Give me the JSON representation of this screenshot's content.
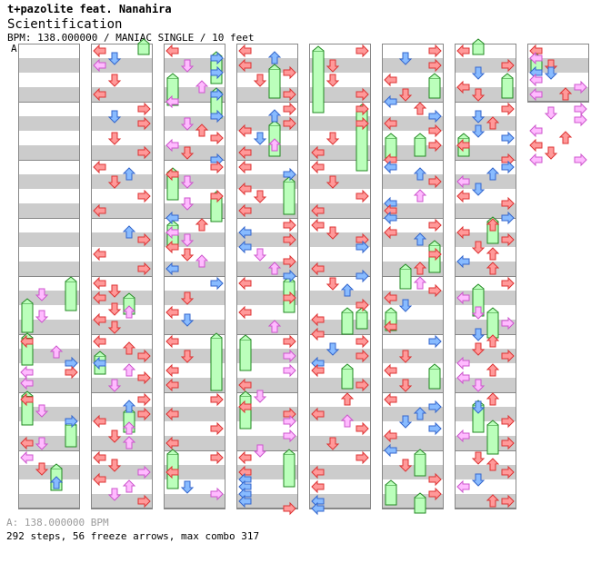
{
  "header": {
    "artist": "t+pazolite feat. Nanahira",
    "title": "Scientification",
    "meta": "BPM: 138.000000 / MANIAC SINGLE / 10 feet",
    "section_label": "A"
  },
  "footer": {
    "bpm_line": "A: 138.000000 BPM",
    "stats_line": "292 steps, 56 freeze arrows, max combo 317"
  },
  "colors": {
    "lane_gray": "#cccccc",
    "border": "#888888",
    "red": "#ff9999",
    "red_edge": "#dd3333",
    "blue": "#88bbff",
    "blue_edge": "#3366cc",
    "pink": "#ffbbff",
    "pink_edge": "#cc55cc",
    "freeze": "#bbffbb",
    "freeze_edge": "#228822"
  },
  "chart_data": {
    "type": "table",
    "columns": 8,
    "measures_per_column": 8,
    "measures_in_chart": 57,
    "note_colors": [
      "4th = red",
      "8th = blue",
      "16th = pink"
    ],
    "arrows_by_lane": [
      "left",
      "down",
      "up",
      "right"
    ],
    "steps": 292,
    "freeze_arrows": 56,
    "max_combo": 317
  }
}
